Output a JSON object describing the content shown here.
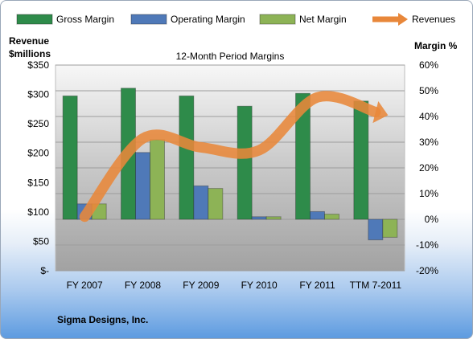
{
  "chart_data": {
    "type": "bar",
    "title": "12-Month Period Margins",
    "left_axis_label": [
      "Revenue",
      "$millions"
    ],
    "right_axis_label": "Margin %",
    "categories": [
      "FY 2007",
      "FY 2008",
      "FY 2009",
      "FY 2010",
      "FY 2011",
      "TTM 7-2011"
    ],
    "left_axis": {
      "min": 0,
      "max": 350,
      "ticks": [
        "$-",
        "$50",
        "$100",
        "$150",
        "$200",
        "$250",
        "$300",
        "$350"
      ]
    },
    "right_axis": {
      "min": -20,
      "max": 60,
      "ticks": [
        "-20%",
        "-10%",
        "0%",
        "10%",
        "20%",
        "30%",
        "40%",
        "50%",
        "60%"
      ]
    },
    "series": [
      {
        "name": "Gross Margin",
        "type": "bar",
        "axis": "right",
        "color": "#2e8b4a",
        "values": [
          48,
          51,
          48,
          44,
          49,
          46
        ]
      },
      {
        "name": "Operating Margin",
        "type": "bar",
        "axis": "right",
        "color": "#4f79b8",
        "values": [
          6,
          26,
          13,
          1,
          3,
          -8
        ]
      },
      {
        "name": "Net Margin",
        "type": "bar",
        "axis": "right",
        "color": "#8db356",
        "values": [
          6,
          31,
          12,
          1,
          2,
          -7
        ]
      },
      {
        "name": "Revenues",
        "type": "line",
        "axis": "left",
        "color": "#e8873a",
        "values": [
          92,
          225,
          210,
          205,
          295,
          270
        ]
      }
    ],
    "legend_position": "top",
    "grid": true
  },
  "company": "Sigma Designs, Inc."
}
